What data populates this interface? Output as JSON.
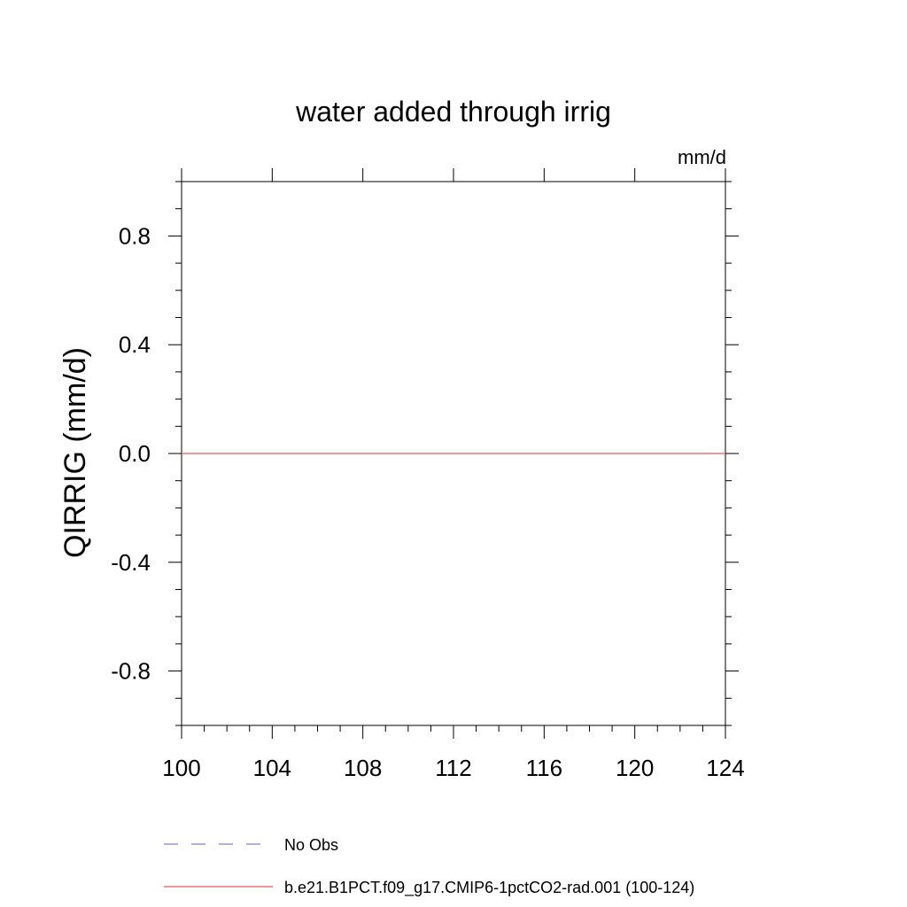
{
  "chart_data": {
    "type": "line",
    "title": "water added through irrig",
    "units_label": "mm/d",
    "xlabel": "",
    "ylabel": "QIRRIG  (mm/d)",
    "xlim": [
      100,
      124
    ],
    "ylim": [
      -1.0,
      1.0
    ],
    "x_ticks": [
      100,
      104,
      108,
      112,
      116,
      120,
      124
    ],
    "x_tick_labels": [
      "100",
      "104",
      "108",
      "112",
      "116",
      "120",
      "124"
    ],
    "y_ticks": [
      -0.8,
      -0.4,
      0.0,
      0.4,
      0.8
    ],
    "y_tick_labels": [
      "-0.8",
      "-0.4",
      "0.0",
      "0.4",
      "0.8"
    ],
    "grid": false,
    "legend_position": "bottom",
    "series": [
      {
        "name": "No Obs",
        "color": "#8080c0",
        "dash": "dashed",
        "x": [],
        "y": []
      },
      {
        "name": "b.e21.B1PCT.f09_g17.CMIP6-1pctCO2-rad.001 (100-124)",
        "color": "#ee5555",
        "dash": "solid",
        "x": [
          100,
          101,
          102,
          103,
          104,
          105,
          106,
          107,
          108,
          109,
          110,
          111,
          112,
          113,
          114,
          115,
          116,
          117,
          118,
          119,
          120,
          121,
          122,
          123,
          124
        ],
        "y": [
          0,
          0,
          0,
          0,
          0,
          0,
          0,
          0,
          0,
          0,
          0,
          0,
          0,
          0,
          0,
          0,
          0,
          0,
          0,
          0,
          0,
          0,
          0,
          0,
          0
        ]
      }
    ]
  }
}
